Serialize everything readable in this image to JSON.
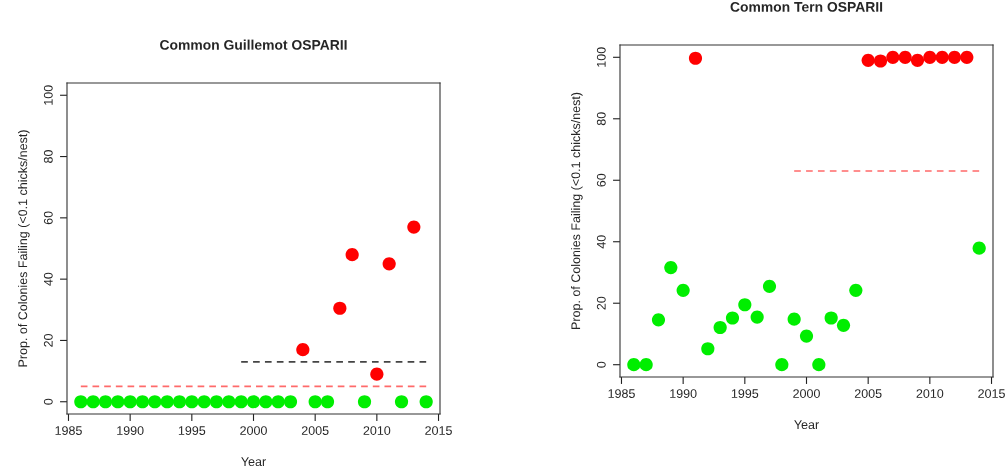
{
  "chart_data": [
    {
      "type": "scatter",
      "title": "Common Guillemot OSPARII",
      "xlabel": "Year",
      "ylabel": "Prop. of Colonies Failing (<0.1 chicks/nest)",
      "xlim": [
        1984.88,
        2015.12
      ],
      "xticks": [
        1985,
        1990,
        1995,
        2000,
        2005,
        2010,
        2015
      ],
      "ylim": [
        -4,
        104
      ],
      "yticks": [
        0,
        20,
        40,
        60,
        80,
        100
      ],
      "grid": false,
      "legend": false,
      "marker": "circle",
      "series": [
        {
          "color": "#00ee00",
          "x": [
            1986,
            1987,
            1988,
            1989,
            1990,
            1991,
            1992,
            1993,
            1994,
            1995,
            1996,
            1997,
            1998,
            1999,
            2000,
            2001,
            2002,
            2003,
            2005,
            2006,
            2009,
            2012,
            2014
          ],
          "values": [
            0,
            0,
            0,
            0,
            0,
            0,
            0,
            0,
            0,
            0,
            0,
            0,
            0,
            0,
            0,
            0,
            0,
            0,
            0,
            0,
            0,
            0,
            0
          ]
        },
        {
          "color": "#ff0000",
          "x": [
            2004,
            2007,
            2008,
            2010,
            2011,
            2013
          ],
          "values": [
            17,
            30.5,
            48,
            9,
            45,
            57
          ]
        },
        {
          "type": "line",
          "marker": "none",
          "line_style": "dashed",
          "color": "#ff6a6a",
          "x": [
            1986,
            2014
          ],
          "values": [
            5,
            5
          ]
        },
        {
          "type": "line",
          "marker": "none",
          "line_style": "dashed",
          "color": "#444444",
          "x": [
            1999,
            2014
          ],
          "values": [
            13,
            13
          ]
        }
      ]
    },
    {
      "type": "scatter",
      "title": "Common Tern OSPARII",
      "xlabel": "Year",
      "ylabel": "Prop. of Colonies Failing (<0.1 chicks/nest)",
      "xlim": [
        1984.88,
        2015.12
      ],
      "xticks": [
        1985,
        1990,
        1995,
        2000,
        2005,
        2010,
        2015
      ],
      "ylim": [
        -4,
        104
      ],
      "yticks": [
        0,
        20,
        40,
        60,
        80,
        100
      ],
      "grid": false,
      "legend": false,
      "marker": "circle",
      "series": [
        {
          "color": "#00ee00",
          "x": [
            1986,
            1987,
            1988,
            1989,
            1990,
            1992,
            1993,
            1994,
            1995,
            1996,
            1997,
            1998,
            1999,
            2000,
            2001,
            2002,
            2003,
            2004,
            2014
          ],
          "values": [
            0,
            0,
            14.6,
            31.6,
            24.2,
            5.2,
            12.1,
            15.2,
            19.5,
            15.5,
            25.5,
            0,
            14.8,
            9.3,
            0,
            15.2,
            12.8,
            24.2,
            37.9
          ]
        },
        {
          "color": "#ff0000",
          "x": [
            1991,
            2005,
            2006,
            2007,
            2008,
            2009,
            2010,
            2011,
            2012,
            2013
          ],
          "values": [
            99.7,
            99,
            98.8,
            100,
            100,
            99,
            100,
            100,
            100,
            100
          ]
        },
        {
          "type": "line",
          "marker": "none",
          "line_style": "dashed",
          "color": "#ff6a6a",
          "x": [
            1999,
            2014
          ],
          "values": [
            63,
            63
          ]
        }
      ]
    }
  ]
}
